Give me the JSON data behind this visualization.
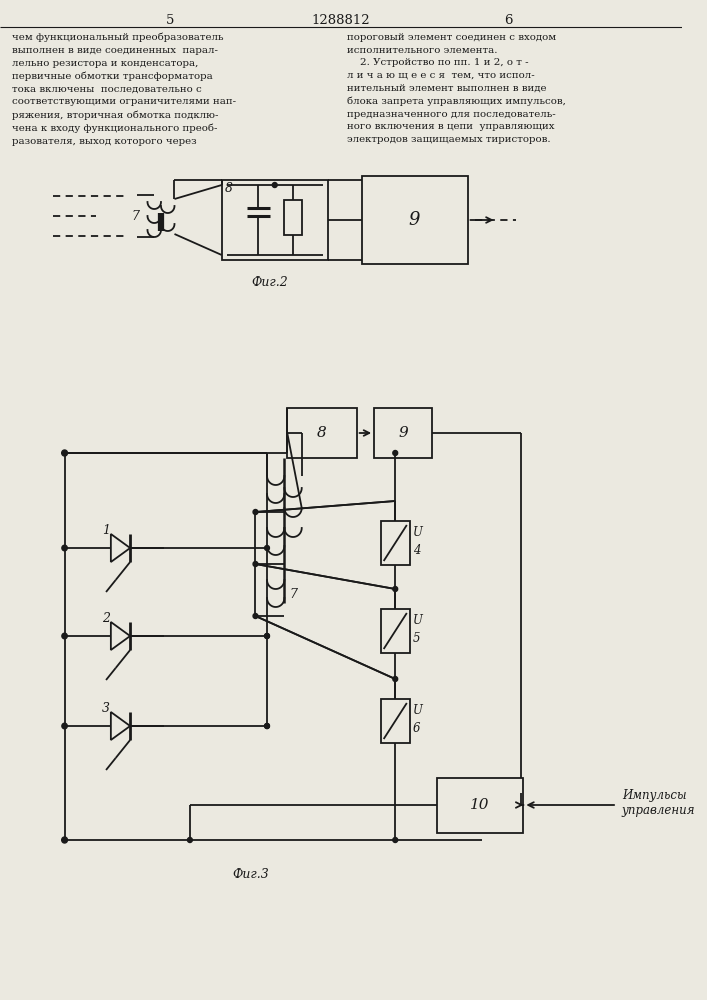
{
  "title": "1288812",
  "page_left": "5",
  "page_right": "6",
  "fig2_label": "Фиг.2",
  "fig3_label": "Фиг.3",
  "text_left": "чем функциональный преобразователь\nвыполнен в виде соединенных  парал-\nлельно резистора и конденсатора,\nпервичные обмотки трансформатора\nтока включены  последовательно с\nсоответствующими ограничителями нап-\nряжения, вторичная обмотка подклю-\nчена к входу функционального преоб-\nразователя, выход которого через",
  "text_right": "пороговый элемент соединен с входом\nисполнительного элемента.\n    2. Устройство по пп. 1 и 2, о т -\nл и ч а ю щ е е с я  тем, что испол-\nнительный элемент выполнен в виде\nблока запрета управляющих импульсов,\nпредназначенного для последователь-\nного включения в цепи  управляющих\nэлектродов защищаемых тиристоров.",
  "impulsy_text": "Импульсы\nуправления",
  "bg_color": "#ebe9e0",
  "line_color": "#1a1a1a"
}
